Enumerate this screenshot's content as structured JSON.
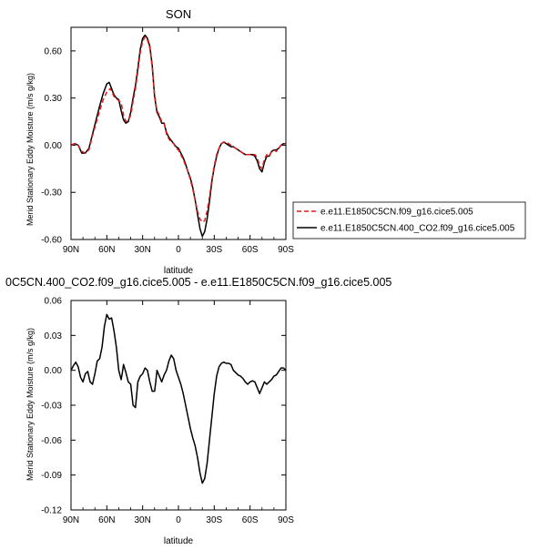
{
  "chart_data": [
    {
      "type": "line",
      "title": "SON",
      "xlabel": "latitude",
      "ylabel": "Merid Stationary Eddy Moisture (m/s g/kg)",
      "xlim": [
        -90,
        90
      ],
      "ylim": [
        -0.6,
        0.75
      ],
      "xticks": [
        -90,
        -60,
        -30,
        0,
        30,
        60,
        90
      ],
      "xtick_labels": [
        "90N",
        "60N",
        "30N",
        "0",
        "30S",
        "60S",
        "90S"
      ],
      "yticks": [
        -0.6,
        -0.3,
        0.0,
        0.3,
        0.6
      ],
      "ytick_labels": [
        "-0.60",
        "-0.30",
        "0.00",
        "0.30",
        "0.60"
      ],
      "legend": {
        "placement": "outside-right"
      },
      "series": [
        {
          "name": "e.e11.E1850C5CN.f09_g16.cice5.005",
          "color": "#e01a1a",
          "dash": "dashed",
          "points": [
            [
              -90,
              0.0
            ],
            [
              -87,
              0.01
            ],
            [
              -84,
              0.0
            ],
            [
              -81,
              -0.04
            ],
            [
              -78,
              -0.05
            ],
            [
              -75,
              -0.03
            ],
            [
              -72,
              0.06
            ],
            [
              -69,
              0.14
            ],
            [
              -66,
              0.22
            ],
            [
              -63,
              0.29
            ],
            [
              -60,
              0.34
            ],
            [
              -57,
              0.36
            ],
            [
              -54,
              0.31
            ],
            [
              -51,
              0.29
            ],
            [
              -48,
              0.27
            ],
            [
              -46,
              0.19
            ],
            [
              -44,
              0.15
            ],
            [
              -42,
              0.16
            ],
            [
              -40,
              0.19
            ],
            [
              -38,
              0.28
            ],
            [
              -36,
              0.36
            ],
            [
              -34,
              0.47
            ],
            [
              -32,
              0.59
            ],
            [
              -30,
              0.66
            ],
            [
              -28,
              0.69
            ],
            [
              -26,
              0.67
            ],
            [
              -24,
              0.62
            ],
            [
              -22,
              0.5
            ],
            [
              -20,
              0.32
            ],
            [
              -18,
              0.22
            ],
            [
              -16,
              0.19
            ],
            [
              -14,
              0.15
            ],
            [
              -12,
              0.14
            ],
            [
              -10,
              0.07
            ],
            [
              -8,
              0.04
            ],
            [
              -6,
              0.02
            ],
            [
              -4,
              0.01
            ],
            [
              -2,
              -0.02
            ],
            [
              0,
              -0.03
            ],
            [
              2,
              -0.06
            ],
            [
              4,
              -0.09
            ],
            [
              6,
              -0.13
            ],
            [
              8,
              -0.17
            ],
            [
              10,
              -0.22
            ],
            [
              12,
              -0.28
            ],
            [
              14,
              -0.35
            ],
            [
              16,
              -0.42
            ],
            [
              18,
              -0.47
            ],
            [
              20,
              -0.49
            ],
            [
              22,
              -0.48
            ],
            [
              24,
              -0.42
            ],
            [
              26,
              -0.33
            ],
            [
              28,
              -0.22
            ],
            [
              30,
              -0.13
            ],
            [
              32,
              -0.06
            ],
            [
              34,
              -0.02
            ],
            [
              36,
              0.01
            ],
            [
              38,
              0.02
            ],
            [
              40,
              0.02
            ],
            [
              42,
              0.01
            ],
            [
              44,
              0.0
            ],
            [
              46,
              -0.01
            ],
            [
              48,
              -0.02
            ],
            [
              50,
              -0.03
            ],
            [
              52,
              -0.04
            ],
            [
              54,
              -0.05
            ],
            [
              56,
              -0.06
            ],
            [
              58,
              -0.06
            ],
            [
              60,
              -0.06
            ],
            [
              62,
              -0.06
            ],
            [
              64,
              -0.06
            ],
            [
              66,
              -0.08
            ],
            [
              68,
              -0.13
            ],
            [
              70,
              -0.15
            ],
            [
              72,
              -0.09
            ],
            [
              74,
              -0.06
            ],
            [
              76,
              -0.07
            ],
            [
              78,
              -0.04
            ],
            [
              80,
              -0.03
            ],
            [
              82,
              -0.04
            ],
            [
              84,
              -0.02
            ],
            [
              86,
              0.0
            ],
            [
              88,
              0.01
            ],
            [
              90,
              0.01
            ]
          ]
        },
        {
          "name": "e.e11.E1850C5CN.400_CO2.f09_g16.cice5.005",
          "color": "#000000",
          "dash": "solid",
          "points": [
            [
              -90,
              0.0
            ],
            [
              -87,
              0.01
            ],
            [
              -84,
              0.0
            ],
            [
              -81,
              -0.05
            ],
            [
              -78,
              -0.05
            ],
            [
              -75,
              -0.02
            ],
            [
              -72,
              0.07
            ],
            [
              -69,
              0.16
            ],
            [
              -66,
              0.25
            ],
            [
              -63,
              0.33
            ],
            [
              -60,
              0.39
            ],
            [
              -58,
              0.4
            ],
            [
              -56,
              0.36
            ],
            [
              -54,
              0.32
            ],
            [
              -52,
              0.3
            ],
            [
              -50,
              0.29
            ],
            [
              -48,
              0.22
            ],
            [
              -46,
              0.16
            ],
            [
              -44,
              0.14
            ],
            [
              -42,
              0.15
            ],
            [
              -40,
              0.21
            ],
            [
              -38,
              0.3
            ],
            [
              -36,
              0.38
            ],
            [
              -34,
              0.49
            ],
            [
              -32,
              0.61
            ],
            [
              -30,
              0.68
            ],
            [
              -28,
              0.7
            ],
            [
              -26,
              0.68
            ],
            [
              -24,
              0.63
            ],
            [
              -22,
              0.51
            ],
            [
              -20,
              0.31
            ],
            [
              -18,
              0.21
            ],
            [
              -16,
              0.18
            ],
            [
              -14,
              0.14
            ],
            [
              -12,
              0.14
            ],
            [
              -10,
              0.08
            ],
            [
              -8,
              0.05
            ],
            [
              -6,
              0.03
            ],
            [
              -4,
              0.01
            ],
            [
              -2,
              -0.01
            ],
            [
              0,
              -0.02
            ],
            [
              2,
              -0.05
            ],
            [
              4,
              -0.08
            ],
            [
              6,
              -0.12
            ],
            [
              8,
              -0.17
            ],
            [
              10,
              -0.21
            ],
            [
              12,
              -0.27
            ],
            [
              14,
              -0.35
            ],
            [
              16,
              -0.44
            ],
            [
              18,
              -0.53
            ],
            [
              20,
              -0.58
            ],
            [
              22,
              -0.55
            ],
            [
              24,
              -0.47
            ],
            [
              26,
              -0.36
            ],
            [
              28,
              -0.23
            ],
            [
              30,
              -0.14
            ],
            [
              32,
              -0.07
            ],
            [
              34,
              -0.02
            ],
            [
              36,
              0.01
            ],
            [
              38,
              0.02
            ],
            [
              40,
              0.01
            ],
            [
              42,
              0.0
            ],
            [
              44,
              -0.01
            ],
            [
              46,
              -0.01
            ],
            [
              48,
              -0.02
            ],
            [
              50,
              -0.03
            ],
            [
              52,
              -0.04
            ],
            [
              54,
              -0.05
            ],
            [
              56,
              -0.06
            ],
            [
              58,
              -0.06
            ],
            [
              60,
              -0.06
            ],
            [
              62,
              -0.06
            ],
            [
              64,
              -0.07
            ],
            [
              66,
              -0.1
            ],
            [
              68,
              -0.15
            ],
            [
              70,
              -0.17
            ],
            [
              72,
              -0.11
            ],
            [
              74,
              -0.07
            ],
            [
              76,
              -0.07
            ],
            [
              78,
              -0.04
            ],
            [
              80,
              -0.03
            ],
            [
              82,
              -0.03
            ],
            [
              84,
              -0.02
            ],
            [
              86,
              0.0
            ],
            [
              88,
              0.01
            ],
            [
              90,
              0.01
            ]
          ]
        }
      ]
    },
    {
      "type": "line",
      "title": "0C5CN.400_CO2.f09_g16.cice5.005 - e.e11.E1850C5CN.f09_g16.cice5.005",
      "xlabel": "latitude",
      "ylabel": "Merid Stationary Eddy Moisture (m/s g/kg)",
      "xlim": [
        -90,
        90
      ],
      "ylim": [
        -0.12,
        0.06
      ],
      "xticks": [
        -90,
        -60,
        -30,
        0,
        30,
        60,
        90
      ],
      "xtick_labels": [
        "90N",
        "60N",
        "30N",
        "0",
        "30S",
        "60S",
        "90S"
      ],
      "yticks": [
        -0.12,
        -0.09,
        -0.06,
        -0.03,
        0.0,
        0.03,
        0.06
      ],
      "ytick_labels": [
        "-0.12",
        "-0.09",
        "-0.06",
        "-0.03",
        "0.00",
        "0.03",
        "0.06"
      ],
      "series": [
        {
          "color": "#000000",
          "dash": "solid",
          "points": [
            [
              -90,
              0.0
            ],
            [
              -88,
              0.004
            ],
            [
              -86,
              0.007
            ],
            [
              -84,
              0.003
            ],
            [
              -82,
              -0.006
            ],
            [
              -80,
              -0.01
            ],
            [
              -78,
              -0.003
            ],
            [
              -76,
              -0.001
            ],
            [
              -74,
              -0.01
            ],
            [
              -72,
              -0.012
            ],
            [
              -70,
              -0.003
            ],
            [
              -68,
              0.008
            ],
            [
              -66,
              0.01
            ],
            [
              -64,
              0.02
            ],
            [
              -62,
              0.038
            ],
            [
              -60,
              0.048
            ],
            [
              -58,
              0.044
            ],
            [
              -56,
              0.045
            ],
            [
              -54,
              0.034
            ],
            [
              -52,
              0.02
            ],
            [
              -50,
              0.0
            ],
            [
              -48,
              -0.008
            ],
            [
              -47,
              -0.002
            ],
            [
              -46,
              0.005
            ],
            [
              -44,
              -0.002
            ],
            [
              -42,
              -0.01
            ],
            [
              -40,
              -0.012
            ],
            [
              -38,
              -0.03
            ],
            [
              -36,
              -0.032
            ],
            [
              -34,
              -0.01
            ],
            [
              -32,
              -0.005
            ],
            [
              -30,
              -0.003
            ],
            [
              -28,
              0.002
            ],
            [
              -26,
              0.0
            ],
            [
              -24,
              -0.01
            ],
            [
              -22,
              -0.018
            ],
            [
              -20,
              -0.018
            ],
            [
              -19,
              -0.01
            ],
            [
              -18,
              0.0
            ],
            [
              -16,
              -0.005
            ],
            [
              -14,
              -0.01
            ],
            [
              -12,
              -0.004
            ],
            [
              -10,
              0.0
            ],
            [
              -8,
              0.008
            ],
            [
              -6,
              0.013
            ],
            [
              -4,
              0.01
            ],
            [
              -2,
              0.0
            ],
            [
              0,
              -0.006
            ],
            [
              2,
              -0.012
            ],
            [
              4,
              -0.02
            ],
            [
              6,
              -0.03
            ],
            [
              8,
              -0.04
            ],
            [
              10,
              -0.05
            ],
            [
              12,
              -0.058
            ],
            [
              14,
              -0.065
            ],
            [
              16,
              -0.075
            ],
            [
              18,
              -0.088
            ],
            [
              20,
              -0.097
            ],
            [
              22,
              -0.093
            ],
            [
              24,
              -0.08
            ],
            [
              26,
              -0.06
            ],
            [
              28,
              -0.04
            ],
            [
              30,
              -0.02
            ],
            [
              32,
              -0.005
            ],
            [
              34,
              0.003
            ],
            [
              36,
              0.006
            ],
            [
              38,
              0.007
            ],
            [
              40,
              0.006
            ],
            [
              42,
              0.006
            ],
            [
              44,
              0.005
            ],
            [
              46,
              0.0
            ],
            [
              48,
              -0.002
            ],
            [
              50,
              -0.004
            ],
            [
              52,
              -0.005
            ],
            [
              54,
              -0.007
            ],
            [
              56,
              -0.01
            ],
            [
              58,
              -0.012
            ],
            [
              60,
              -0.01
            ],
            [
              62,
              -0.009
            ],
            [
              64,
              -0.01
            ],
            [
              66,
              -0.015
            ],
            [
              68,
              -0.02
            ],
            [
              70,
              -0.015
            ],
            [
              72,
              -0.01
            ],
            [
              74,
              -0.012
            ],
            [
              76,
              -0.01
            ],
            [
              78,
              -0.008
            ],
            [
              80,
              -0.005
            ],
            [
              82,
              -0.004
            ],
            [
              84,
              -0.001
            ],
            [
              86,
              0.002
            ],
            [
              88,
              0.002
            ],
            [
              90,
              0.0
            ]
          ]
        }
      ]
    }
  ]
}
